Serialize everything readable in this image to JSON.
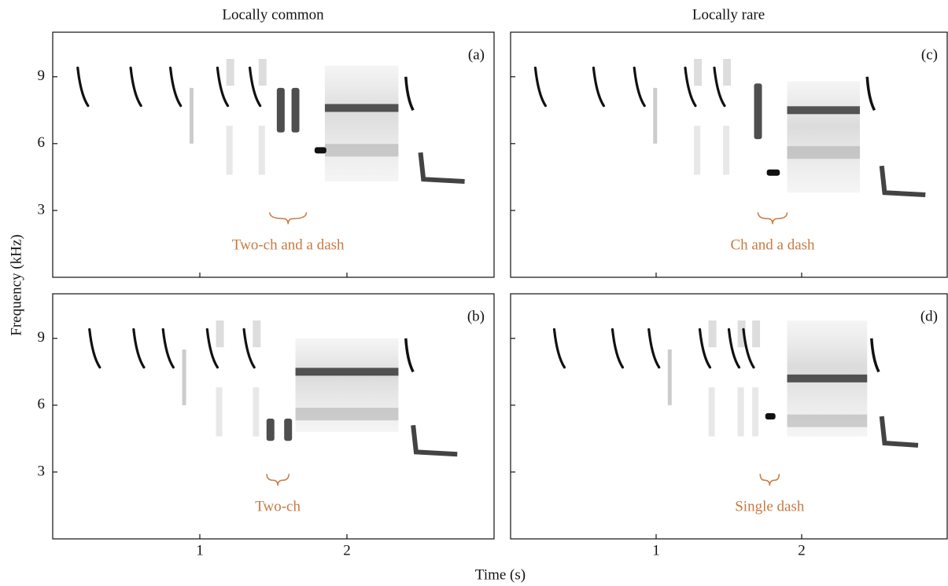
{
  "column_titles": [
    "Locally common",
    "Locally rare"
  ],
  "y_label": "Frequency (kHz)",
  "x_label": "Time (s)",
  "chart_data": [
    {
      "type": "spectrogram",
      "panel_label": "(a)",
      "annotation": "Two-ch and a dash",
      "xlim": [
        0,
        3
      ],
      "ylim": [
        0,
        11
      ],
      "xticks": [
        1,
        2
      ],
      "yticks": [
        3,
        6,
        9
      ],
      "x_tick_labels": false,
      "y_tick_labels": true
    },
    {
      "type": "spectrogram",
      "panel_label": "(b)",
      "annotation": "Two-ch",
      "xlim": [
        0,
        3
      ],
      "ylim": [
        0,
        11
      ],
      "xticks": [
        1,
        2
      ],
      "yticks": [
        3,
        6,
        9
      ],
      "x_tick_labels": true,
      "y_tick_labels": true
    },
    {
      "type": "spectrogram",
      "panel_label": "(c)",
      "annotation": "Ch and a dash",
      "xlim": [
        0,
        3
      ],
      "ylim": [
        0,
        11
      ],
      "xticks": [
        1,
        2
      ],
      "yticks": [
        3,
        6,
        9
      ],
      "x_tick_labels": false,
      "y_tick_labels": false
    },
    {
      "type": "spectrogram",
      "panel_label": "(d)",
      "annotation": "Single dash",
      "xlim": [
        0,
        3
      ],
      "ylim": [
        0,
        11
      ],
      "xticks": [
        1,
        2
      ],
      "yticks": [
        3,
        6,
        9
      ],
      "x_tick_labels": true,
      "y_tick_labels": false
    }
  ]
}
